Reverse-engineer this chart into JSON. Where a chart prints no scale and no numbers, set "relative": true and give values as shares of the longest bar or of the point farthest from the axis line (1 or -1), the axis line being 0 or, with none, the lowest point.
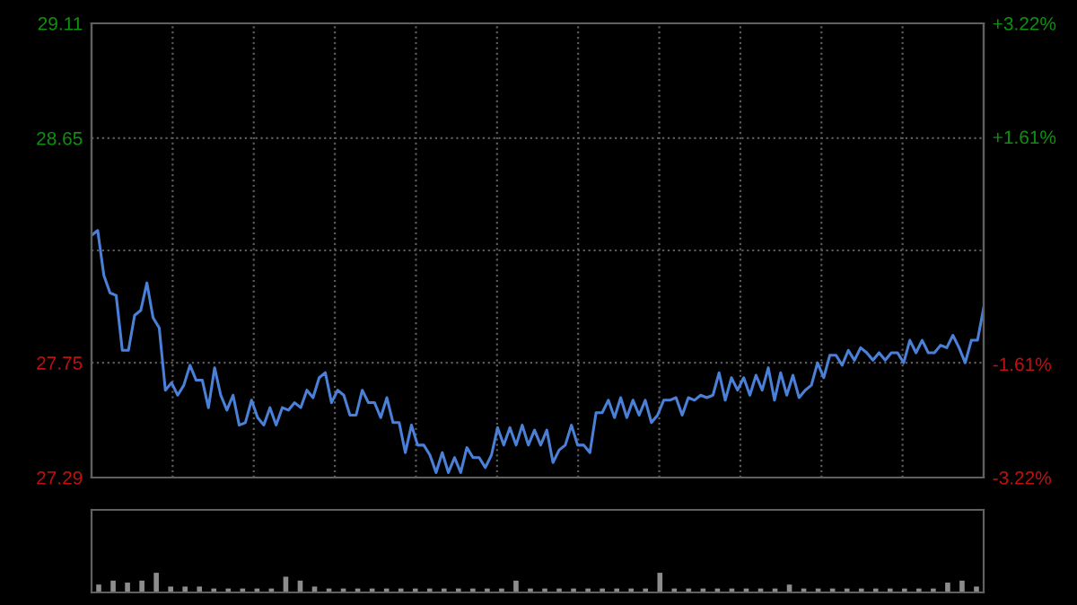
{
  "chart_data": [
    {
      "type": "line",
      "categories": [
        null,
        null,
        null,
        null,
        null,
        null,
        null,
        null,
        null,
        null,
        null,
        null,
        null,
        null,
        null,
        null,
        null,
        null,
        null,
        null,
        null,
        null,
        null,
        null,
        null,
        null,
        null,
        null,
        null,
        null,
        null,
        null,
        null,
        null,
        null,
        null,
        null,
        null,
        null,
        null,
        null,
        null,
        null,
        null,
        null,
        null,
        null,
        null,
        null,
        null,
        null,
        null,
        null,
        null,
        null,
        null,
        null,
        null,
        null,
        null,
        null,
        null,
        null,
        null,
        null,
        null,
        null,
        null,
        null,
        null,
        null,
        null,
        null,
        null,
        null,
        null,
        null,
        null,
        null,
        null,
        null,
        null,
        null,
        null,
        null,
        null,
        null,
        null,
        null,
        null,
        null,
        null,
        null,
        null,
        null,
        null,
        null,
        null,
        null,
        null,
        null,
        null,
        null,
        null,
        null,
        null,
        null,
        null,
        null,
        null,
        null,
        null,
        null,
        null,
        null,
        null,
        null,
        null,
        null,
        null,
        null,
        null,
        null,
        null,
        null,
        null,
        null,
        null,
        null,
        null,
        null,
        null,
        null,
        null,
        null,
        null,
        null,
        null,
        null,
        null,
        null,
        null,
        null,
        null,
        null,
        null
      ],
      "series": [
        {
          "color": "#4a80d8",
          "values": [
            28.26,
            28.28,
            28.1,
            28.03,
            28.02,
            27.8,
            27.8,
            27.94,
            27.96,
            28.07,
            27.93,
            27.89,
            27.64,
            27.67,
            27.62,
            27.66,
            27.74,
            27.68,
            27.68,
            27.57,
            27.73,
            27.62,
            27.56,
            27.62,
            27.5,
            27.51,
            27.6,
            27.53,
            27.5,
            27.57,
            27.5,
            27.57,
            27.56,
            27.59,
            27.57,
            27.64,
            27.61,
            27.69,
            27.71,
            27.59,
            27.64,
            27.62,
            27.54,
            27.54,
            27.64,
            27.59,
            27.59,
            27.53,
            27.61,
            27.51,
            27.51,
            27.39,
            27.5,
            27.42,
            27.42,
            27.38,
            27.31,
            27.39,
            27.31,
            27.37,
            27.31,
            27.41,
            27.37,
            27.37,
            27.33,
            27.38,
            27.49,
            27.42,
            27.49,
            27.42,
            27.5,
            27.42,
            27.48,
            27.42,
            27.48,
            27.35,
            27.4,
            27.42,
            27.5,
            27.42,
            27.42,
            27.39,
            27.55,
            27.55,
            27.6,
            27.53,
            27.61,
            27.53,
            27.6,
            27.54,
            27.6,
            27.51,
            27.54,
            27.6,
            27.6,
            27.61,
            27.54,
            27.61,
            27.6,
            27.62,
            27.61,
            27.62,
            27.71,
            27.6,
            27.69,
            27.64,
            27.69,
            27.62,
            27.7,
            27.64,
            27.73,
            27.6,
            27.71,
            27.62,
            27.7,
            27.61,
            27.64,
            27.66,
            27.75,
            27.69,
            27.78,
            27.78,
            27.74,
            27.8,
            27.76,
            27.81,
            27.79,
            27.76,
            27.79,
            27.76,
            27.79,
            27.79,
            27.75,
            27.84,
            27.79,
            27.84,
            27.79,
            27.79,
            27.82,
            27.81,
            27.86,
            27.81,
            27.75,
            27.84,
            27.84,
            27.97
          ]
        }
      ],
      "ylim": [
        27.29,
        29.11
      ],
      "yticks": [
        27.29,
        27.75,
        {
          "value": 28.2,
          "label": null
        },
        28.65,
        29.11
      ],
      "y2lim": [
        -3.22,
        3.22
      ],
      "y2ticks": [
        {
          "value": -3.22,
          "label": "-3.22%"
        },
        {
          "value": -1.61,
          "label": "-1.61%"
        },
        {
          "value": 0,
          "label": null
        },
        {
          "value": 1.61,
          "label": "+1.61%"
        },
        {
          "value": 3.22,
          "label": "+3.22%"
        }
      ],
      "tick_labels": "y",
      "grid": true
    },
    {
      "type": "bar",
      "relative": true,
      "tick_labels": false,
      "categories": [
        null,
        null,
        null,
        null,
        null,
        null,
        null,
        null,
        null,
        null,
        null,
        null,
        null,
        null,
        null,
        null,
        null,
        null,
        null,
        null,
        null,
        null,
        null,
        null,
        null,
        null,
        null,
        null,
        null,
        null,
        null,
        null,
        null,
        null,
        null,
        null,
        null,
        null,
        null,
        null,
        null,
        null,
        null,
        null,
        null,
        null,
        null,
        null,
        null,
        null,
        null,
        null,
        null,
        null,
        null,
        null,
        null,
        null,
        null,
        null,
        null,
        null
      ],
      "series": [
        {
          "color": "#8c8c8c",
          "values": [
            0.4,
            0.6,
            0.5,
            0.6,
            1.0,
            0.3,
            0.3,
            0.3,
            0.2,
            0.2,
            0.2,
            0.2,
            0.2,
            0.8,
            0.6,
            0.3,
            0.2,
            0.2,
            0.2,
            0.2,
            0.2,
            0.2,
            0.2,
            0.2,
            0.2,
            0.2,
            0.2,
            0.2,
            0.2,
            0.6,
            0.2,
            0.2,
            0.2,
            0.2,
            0.2,
            0.2,
            0.2,
            0.2,
            0.2,
            1.0,
            0.2,
            0.2,
            0.2,
            0.2,
            0.2,
            0.2,
            0.2,
            0.2,
            0.4,
            0.2,
            0.2,
            0.2,
            0.2,
            0.2,
            0.2,
            0.2,
            0.2,
            0.2,
            0.2,
            0.5,
            0.6,
            0.3
          ]
        }
      ]
    }
  ]
}
